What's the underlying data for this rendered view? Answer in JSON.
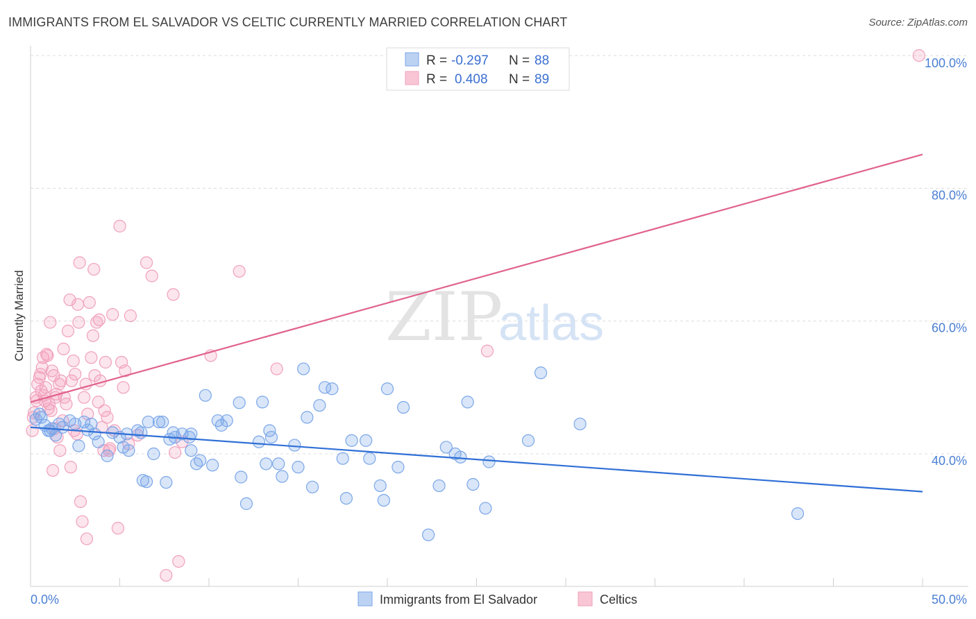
{
  "title": "IMMIGRANTS FROM EL SALVADOR VS CELTIC CURRENTLY MARRIED CORRELATION CHART",
  "source": "Source: ZipAtlas.com",
  "watermark": {
    "zip": "ZIP",
    "atlas": "atlas"
  },
  "colors": {
    "blue": "#2f6fd6",
    "blue_fill": "rgba(120,165,235,0.28)",
    "blue_stroke": "#7aa6e8",
    "pink": "#e0628c",
    "pink_fill": "rgba(245,160,190,0.28)",
    "pink_stroke": "#f0a0bc",
    "tick": "#4a7fd4"
  },
  "legend": {
    "r_label": "R =",
    "n_label": "N =",
    "rows": [
      {
        "r": "-0.297",
        "n": "88"
      },
      {
        "r": "0.408",
        "n": "89"
      }
    ]
  },
  "chart_data": {
    "type": "scatter",
    "title": "IMMIGRANTS FROM EL SALVADOR VS CELTIC CURRENTLY MARRIED CORRELATION CHART",
    "xlabel": "",
    "ylabel": "Currently Married",
    "xlim": [
      0,
      50
    ],
    "ylim": [
      20,
      102
    ],
    "x_tick_labels": [
      "0.0%",
      "50.0%"
    ],
    "y_ticks": [
      40,
      60,
      80,
      100
    ],
    "y_tick_labels": [
      "40.0%",
      "60.0%",
      "80.0%",
      "100.0%"
    ],
    "grid": true,
    "legend_position": "top-center",
    "series": [
      {
        "name": "Immigrants from El Salvador",
        "color": "#2f6fd6",
        "trend": {
          "x": [
            0,
            50
          ],
          "y": [
            44.0,
            34.3
          ]
        },
        "points": [
          [
            0.3,
            45.2
          ],
          [
            0.5,
            46.0
          ],
          [
            0.6,
            45.5
          ],
          [
            0.8,
            44.3
          ],
          [
            1.0,
            43.5
          ],
          [
            1.2,
            43.8
          ],
          [
            1.4,
            42.8
          ],
          [
            1.6,
            44.5
          ],
          [
            1.8,
            44.0
          ],
          [
            2.2,
            45.0
          ],
          [
            2.5,
            44.5
          ],
          [
            2.7,
            41.2
          ],
          [
            3.0,
            44.8
          ],
          [
            3.2,
            43.6
          ],
          [
            3.4,
            44.5
          ],
          [
            3.6,
            43.0
          ],
          [
            3.8,
            41.8
          ],
          [
            4.3,
            39.7
          ],
          [
            4.6,
            43.2
          ],
          [
            5.0,
            42.5
          ],
          [
            5.2,
            41.0
          ],
          [
            5.4,
            43.0
          ],
          [
            5.5,
            40.5
          ],
          [
            6.0,
            43.5
          ],
          [
            6.2,
            43.2
          ],
          [
            6.3,
            36.0
          ],
          [
            6.5,
            35.8
          ],
          [
            6.6,
            44.8
          ],
          [
            6.9,
            40.0
          ],
          [
            7.2,
            44.8
          ],
          [
            7.4,
            44.8
          ],
          [
            7.6,
            35.7
          ],
          [
            7.8,
            42.2
          ],
          [
            8.0,
            43.2
          ],
          [
            8.1,
            42.5
          ],
          [
            8.5,
            43.0
          ],
          [
            8.9,
            42.5
          ],
          [
            9.0,
            43.0
          ],
          [
            9.0,
            40.5
          ],
          [
            9.3,
            38.5
          ],
          [
            9.5,
            39.0
          ],
          [
            9.8,
            48.8
          ],
          [
            10.2,
            38.3
          ],
          [
            10.5,
            45.0
          ],
          [
            10.7,
            44.3
          ],
          [
            11.0,
            45.0
          ],
          [
            11.7,
            47.7
          ],
          [
            11.8,
            36.5
          ],
          [
            12.1,
            32.5
          ],
          [
            12.8,
            41.8
          ],
          [
            13.0,
            47.8
          ],
          [
            13.2,
            38.5
          ],
          [
            13.4,
            43.5
          ],
          [
            13.5,
            42.5
          ],
          [
            13.9,
            38.5
          ],
          [
            14.1,
            36.6
          ],
          [
            14.8,
            41.3
          ],
          [
            15.0,
            38.0
          ],
          [
            15.3,
            52.8
          ],
          [
            15.5,
            45.5
          ],
          [
            15.8,
            35.0
          ],
          [
            16.2,
            47.3
          ],
          [
            16.5,
            50.0
          ],
          [
            16.9,
            49.8
          ],
          [
            17.5,
            39.3
          ],
          [
            17.7,
            33.3
          ],
          [
            18.0,
            42.0
          ],
          [
            18.8,
            42.0
          ],
          [
            19.0,
            39.3
          ],
          [
            19.6,
            35.2
          ],
          [
            19.8,
            33.0
          ],
          [
            20.0,
            49.8
          ],
          [
            20.9,
            47.0
          ],
          [
            20.6,
            38.0
          ],
          [
            22.3,
            27.8
          ],
          [
            22.9,
            35.2
          ],
          [
            23.3,
            41.0
          ],
          [
            23.8,
            40.0
          ],
          [
            24.1,
            39.5
          ],
          [
            24.5,
            47.8
          ],
          [
            24.8,
            35.4
          ],
          [
            25.5,
            31.8
          ],
          [
            25.7,
            38.8
          ],
          [
            27.9,
            42.0
          ],
          [
            28.6,
            52.2
          ],
          [
            30.8,
            44.5
          ],
          [
            43.0,
            31.0
          ],
          [
            1.1,
            43.5
          ]
        ]
      },
      {
        "name": "Celtics",
        "color": "#e0628c",
        "trend": {
          "x": [
            0,
            50
          ],
          "y": [
            47.8,
            85.1
          ]
        },
        "points": [
          [
            0.1,
            43.5
          ],
          [
            0.2,
            46.2
          ],
          [
            0.3,
            48.5
          ],
          [
            0.4,
            50.5
          ],
          [
            0.5,
            51.5
          ],
          [
            0.6,
            49.5
          ],
          [
            0.7,
            54.5
          ],
          [
            0.8,
            48.0
          ],
          [
            0.9,
            55.0
          ],
          [
            1.0,
            46.8
          ],
          [
            1.1,
            59.8
          ],
          [
            1.2,
            52.5
          ],
          [
            1.3,
            51.8
          ],
          [
            1.4,
            48.5
          ],
          [
            1.5,
            42.5
          ],
          [
            1.6,
            50.5
          ],
          [
            1.7,
            51.0
          ],
          [
            1.8,
            45.0
          ],
          [
            1.9,
            48.5
          ],
          [
            2.0,
            47.5
          ],
          [
            2.1,
            58.5
          ],
          [
            2.2,
            63.2
          ],
          [
            2.3,
            51.0
          ],
          [
            2.4,
            54.0
          ],
          [
            2.5,
            52.0
          ],
          [
            2.6,
            43.0
          ],
          [
            2.7,
            59.8
          ],
          [
            2.8,
            32.8
          ],
          [
            2.9,
            29.8
          ],
          [
            3.0,
            48.5
          ],
          [
            3.1,
            50.5
          ],
          [
            3.2,
            46.0
          ],
          [
            3.3,
            62.8
          ],
          [
            3.4,
            54.5
          ],
          [
            3.5,
            57.8
          ],
          [
            3.6,
            51.8
          ],
          [
            3.7,
            59.8
          ],
          [
            3.8,
            47.8
          ],
          [
            3.9,
            51.0
          ],
          [
            4.0,
            44.0
          ],
          [
            4.1,
            40.5
          ],
          [
            4.2,
            53.8
          ],
          [
            4.3,
            45.5
          ],
          [
            4.4,
            40.5
          ],
          [
            4.6,
            61.0
          ],
          [
            4.7,
            43.5
          ],
          [
            4.9,
            28.8
          ],
          [
            5.0,
            74.3
          ],
          [
            5.1,
            53.8
          ],
          [
            5.2,
            50.0
          ],
          [
            5.3,
            52.5
          ],
          [
            5.5,
            41.5
          ],
          [
            5.6,
            60.8
          ],
          [
            6.0,
            42.8
          ],
          [
            6.5,
            68.8
          ],
          [
            6.8,
            66.8
          ],
          [
            7.6,
            21.7
          ],
          [
            8.0,
            64.0
          ],
          [
            8.1,
            40.2
          ],
          [
            8.3,
            23.8
          ],
          [
            8.5,
            41.8
          ],
          [
            10.1,
            54.8
          ],
          [
            11.7,
            67.5
          ],
          [
            13.8,
            52.8
          ],
          [
            25.6,
            55.5
          ],
          [
            0.15,
            45.5
          ],
          [
            0.35,
            48.0
          ],
          [
            0.55,
            52.0
          ],
          [
            0.65,
            53.0
          ],
          [
            0.75,
            48.8
          ],
          [
            0.85,
            50.0
          ],
          [
            0.95,
            54.8
          ],
          [
            1.05,
            47.5
          ],
          [
            1.15,
            46.5
          ],
          [
            1.25,
            37.5
          ],
          [
            1.35,
            43.8
          ],
          [
            1.45,
            49.0
          ],
          [
            1.65,
            40.5
          ],
          [
            2.25,
            38.0
          ],
          [
            2.45,
            43.5
          ],
          [
            2.75,
            68.8
          ],
          [
            3.15,
            27.2
          ],
          [
            3.55,
            67.8
          ],
          [
            3.85,
            60.2
          ],
          [
            4.15,
            46.5
          ],
          [
            4.45,
            40.8
          ],
          [
            1.85,
            55.8
          ],
          [
            2.65,
            62.5
          ],
          [
            49.8,
            100.0
          ]
        ]
      }
    ]
  },
  "bottom_legend": [
    "Immigrants from El Salvador",
    "Celtics"
  ]
}
